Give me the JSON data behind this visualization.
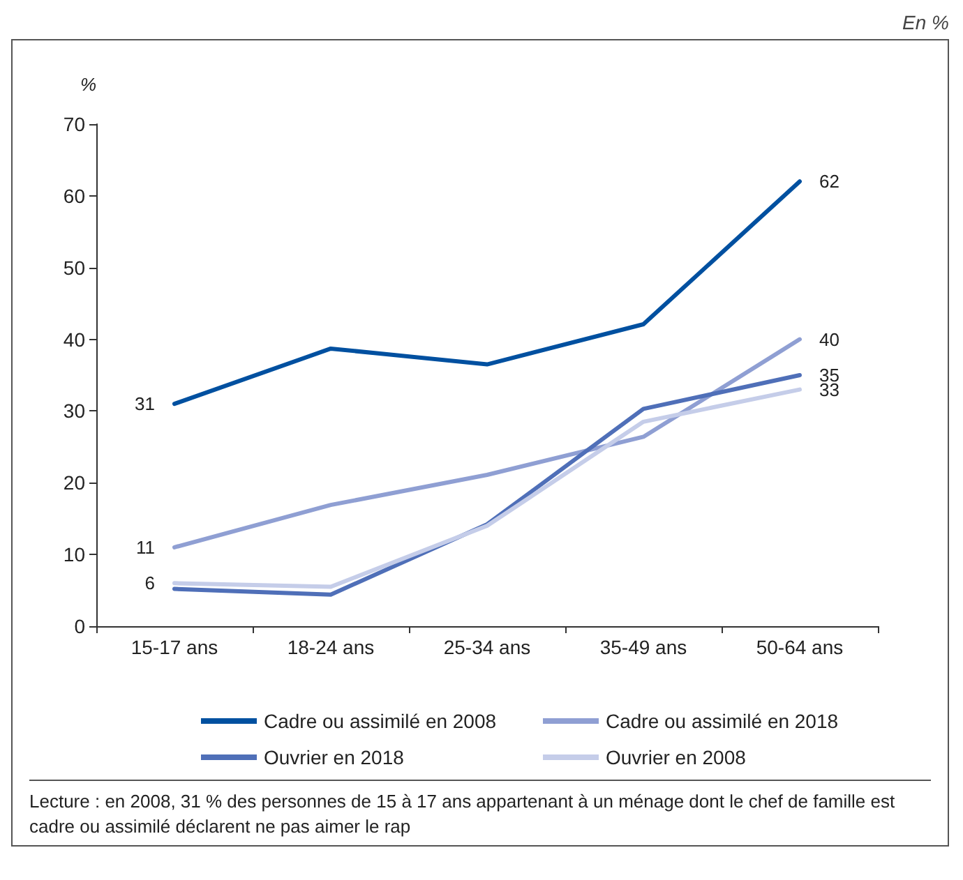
{
  "chart_data": {
    "type": "line",
    "ylabel": "%",
    "annotations": [
      "En %",
      "Lecture : en 2008, 31 % des personnes de 15 à 17 ans appartenant à un ménage dont le chef de famille est cadre ou assimilé déclarent ne pas aimer le rap"
    ],
    "categories": [
      "15-17 ans",
      "18-24 ans",
      "25-34 ans",
      "35-49 ans",
      "50-64 ans"
    ],
    "series": [
      {
        "name": "Cadre ou assimilé en 2008",
        "color": "#0050a0",
        "values": [
          31,
          38.7,
          36.5,
          42.1,
          62
        ],
        "value_labels": [
          "31",
          null,
          null,
          null,
          "62"
        ]
      },
      {
        "name": "Cadre ou assimilé en 2018",
        "color": "#8f9fd3",
        "values": [
          11,
          16.9,
          21.1,
          26.4,
          40
        ],
        "value_labels": [
          "11",
          null,
          null,
          null,
          "40"
        ]
      },
      {
        "name": "Ouvrier en 2018",
        "color": "#4f6fb8",
        "values": [
          5.2,
          4.4,
          14.2,
          30.3,
          35
        ],
        "value_labels": [
          null,
          null,
          null,
          null,
          "35"
        ]
      },
      {
        "name": "Ouvrier en 2008",
        "color": "#c5cde9",
        "values": [
          6,
          5.5,
          14,
          28.5,
          33
        ],
        "value_labels": [
          "6",
          null,
          null,
          null,
          "33"
        ]
      }
    ],
    "ylim": [
      0,
      70
    ],
    "yticks": [
      0,
      10,
      20,
      30,
      40,
      50,
      60,
      70
    ],
    "grid": false,
    "legend": "bottom",
    "marker": "none",
    "line_style": "solid"
  }
}
